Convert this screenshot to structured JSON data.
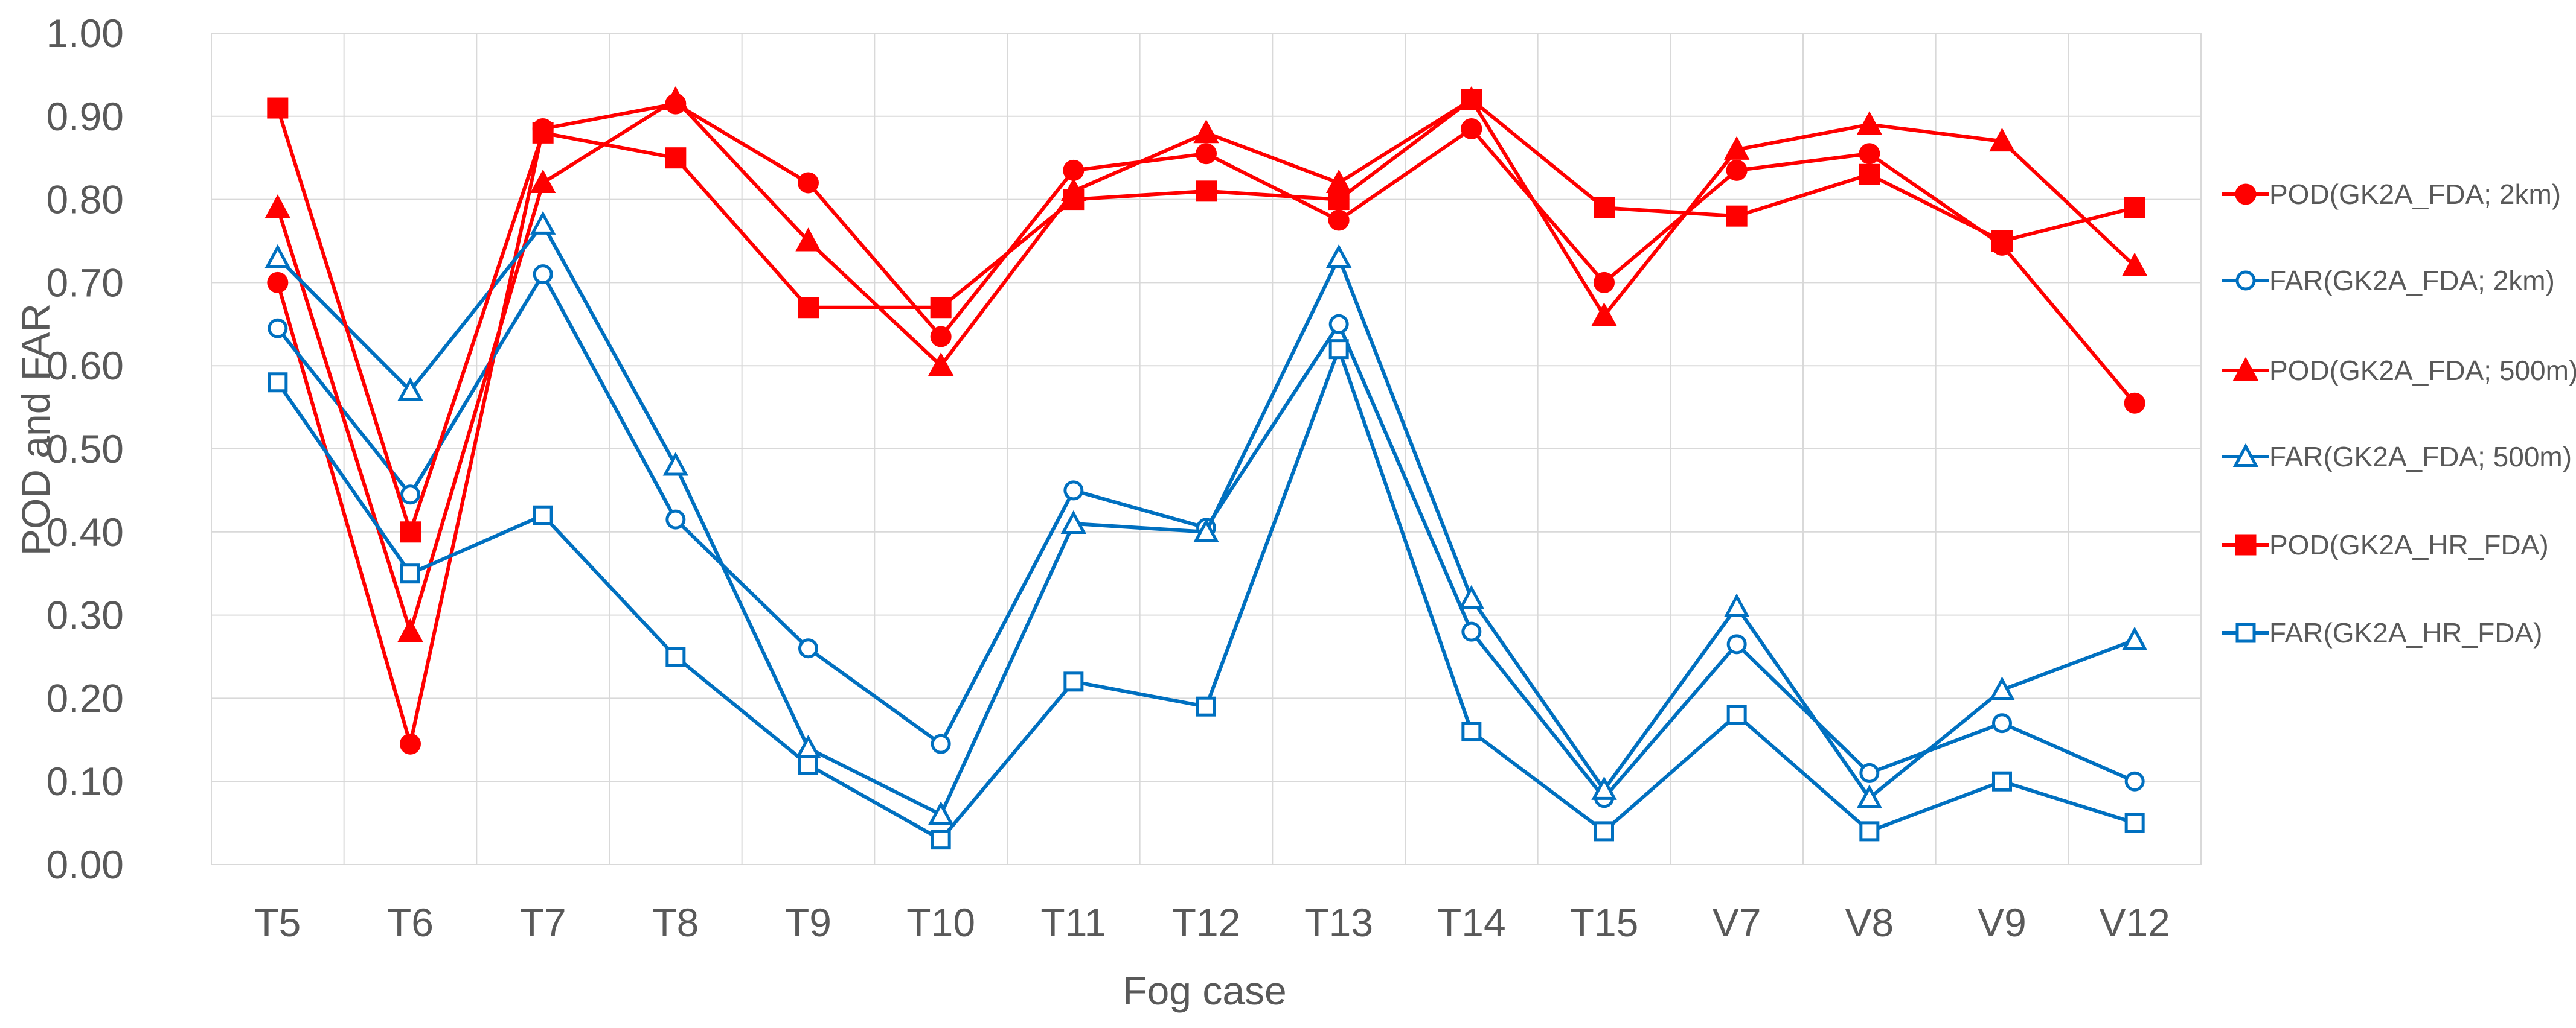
{
  "chart_data": {
    "type": "line",
    "title": "",
    "xlabel": "Fog case",
    "ylabel": "POD and FAR",
    "ylim": [
      0,
      1
    ],
    "yticks": [
      "0.00",
      "0.10",
      "0.20",
      "0.30",
      "0.40",
      "0.50",
      "0.60",
      "0.70",
      "0.80",
      "0.90",
      "1.00"
    ],
    "grid": true,
    "legend_position": "right",
    "categories": [
      "T5",
      "T6",
      "T7",
      "T8",
      "T9",
      "T10",
      "T11",
      "T12",
      "T13",
      "T14",
      "T15",
      "V7",
      "V8",
      "V9",
      "V12"
    ],
    "series": [
      {
        "name": "POD(GK2A_FDA; 2km)",
        "color": "#ff0000",
        "marker": "circle",
        "filled": true,
        "values": [
          0.7,
          0.145,
          0.885,
          0.915,
          0.82,
          0.635,
          0.835,
          0.855,
          0.775,
          0.885,
          0.7,
          0.835,
          0.855,
          0.745,
          0.555
        ]
      },
      {
        "name": "FAR(GK2A_FDA; 2km)",
        "color": "#0070c0",
        "marker": "circle",
        "filled": false,
        "values": [
          0.645,
          0.445,
          0.71,
          0.415,
          0.26,
          0.145,
          0.45,
          0.405,
          0.65,
          0.28,
          0.08,
          0.265,
          0.11,
          0.17,
          0.1
        ]
      },
      {
        "name": "POD(GK2A_FDA; 500m)",
        "color": "#ff0000",
        "marker": "triangle",
        "filled": true,
        "values": [
          0.79,
          0.28,
          0.82,
          0.92,
          0.75,
          0.6,
          0.81,
          0.88,
          0.82,
          0.92,
          0.66,
          0.86,
          0.89,
          0.87,
          0.72
        ]
      },
      {
        "name": "FAR(GK2A_FDA; 500m)",
        "color": "#0070c0",
        "marker": "triangle",
        "filled": false,
        "values": [
          0.73,
          0.57,
          0.77,
          0.48,
          0.14,
          0.06,
          0.41,
          0.4,
          0.73,
          0.32,
          0.09,
          0.31,
          0.08,
          0.21,
          0.27
        ]
      },
      {
        "name": "POD(GK2A_HR_FDA)",
        "color": "#ff0000",
        "marker": "square",
        "filled": true,
        "values": [
          0.91,
          0.4,
          0.88,
          0.85,
          0.67,
          0.67,
          0.8,
          0.81,
          0.8,
          0.92,
          0.79,
          0.78,
          0.83,
          0.75,
          0.79
        ]
      },
      {
        "name": "FAR(GK2A_HR_FDA)",
        "color": "#0070c0",
        "marker": "square",
        "filled": false,
        "values": [
          0.58,
          0.35,
          0.42,
          0.25,
          0.12,
          0.03,
          0.22,
          0.19,
          0.62,
          0.16,
          0.04,
          0.18,
          0.04,
          0.1,
          0.05
        ]
      }
    ]
  }
}
